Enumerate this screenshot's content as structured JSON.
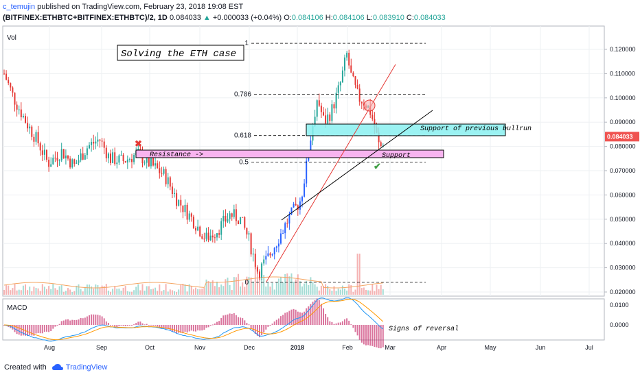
{
  "header": {
    "author": "c_temujin",
    "published": "published on TradingView.com, February 23, 2018 19:08 EST",
    "symbol": "(BITFINEX:ETHBTC+BITFINEX:ETHBTC)/2, 1D",
    "last": "0.084033",
    "change": "+0.000033 (+0.04%)",
    "open_label": "O:",
    "open": "0.084106",
    "high_label": "H:",
    "high": "0.084106",
    "low_label": "L:",
    "low": "0.083910",
    "close_label": "C:",
    "close": "0.084033"
  },
  "footer": {
    "created_with": "Created with",
    "brand": "TradingView"
  },
  "chart_data": {
    "type": "candlestick",
    "volume_label": "Vol",
    "title_annotation": "Solving the ETH case",
    "price_axis": {
      "ticks": [
        "0.120000",
        "0.110000",
        "0.100000",
        "0.090000",
        "0.080000",
        "0.070000",
        "0.060000",
        "0.050000",
        "0.040000",
        "0.030000",
        "0.020000"
      ],
      "tick_values": [
        0.12,
        0.11,
        0.1,
        0.09,
        0.08,
        0.07,
        0.06,
        0.05,
        0.04,
        0.03,
        0.02
      ],
      "last_price_label": "0.084033",
      "last_price": 0.084033
    },
    "time_axis": [
      "Aug",
      "Sep",
      "Oct",
      "Nov",
      "Dec",
      "2018",
      "Feb",
      "Mar",
      "Apr",
      "May",
      "Jun",
      "Jul"
    ],
    "fib_levels": [
      {
        "label": "1",
        "value": 0.1225
      },
      {
        "label": "0.786",
        "value": 0.1015
      },
      {
        "label": "0.618",
        "value": 0.0845
      },
      {
        "label": "0.5",
        "value": 0.0735
      },
      {
        "label": "0",
        "value": 0.024
      }
    ],
    "annotations": {
      "resistance": "Resistance ->",
      "support": "Support",
      "support_prev": "Support of previous bullrun",
      "signs": "Signs of reversal"
    },
    "macd": {
      "label": "MACD",
      "ticks": [
        "0.0100",
        "0.0000"
      ],
      "tick_values": [
        0.01,
        0.0
      ]
    },
    "colors": {
      "up": "#26a69a",
      "down": "#ef5350",
      "blue_candle": "#2962ff",
      "pink_box": "#f8b4f0",
      "cyan_box": "#8af0f0"
    }
  }
}
